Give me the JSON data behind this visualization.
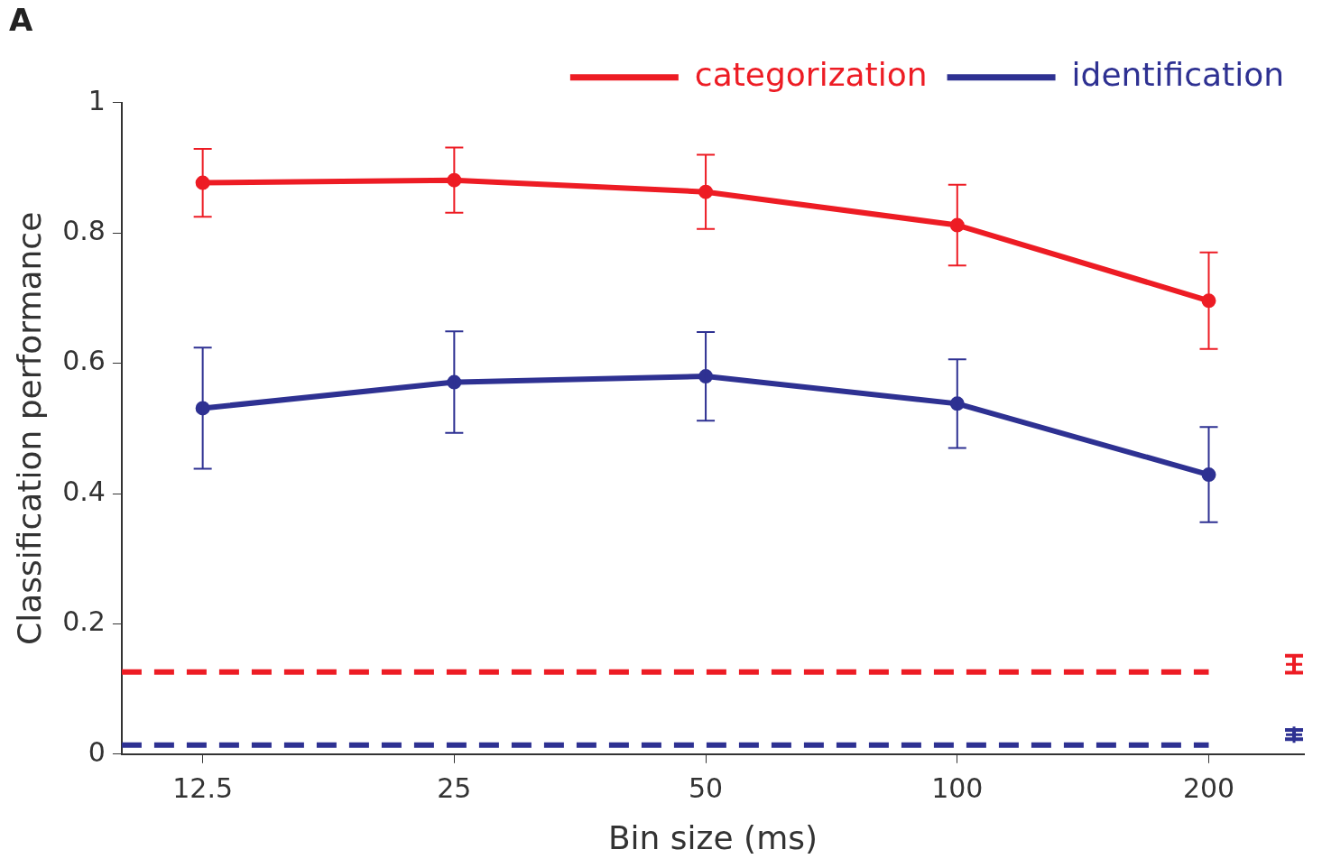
{
  "chart_data": {
    "type": "line",
    "title": "A",
    "xlabel": "Bin size (ms)",
    "ylabel": "Classification performance",
    "log": "x",
    "xlim": [
      10,
      260
    ],
    "xticks": [
      12.5,
      25,
      50,
      100,
      200
    ],
    "ylim": [
      0,
      1
    ],
    "yticks": [
      0,
      0.2,
      0.4,
      0.6,
      0.8,
      1
    ],
    "grid": false,
    "legend": "top right",
    "marker": "circle",
    "line_style": "solid",
    "x": [
      12.5,
      25,
      50,
      100,
      200
    ],
    "series": [
      {
        "name": "categorization",
        "color": "#ed1c24",
        "values": [
          0.877,
          0.881,
          0.863,
          0.812,
          0.696
        ],
        "errors": [
          0.052,
          0.05,
          0.057,
          0.062,
          0.074
        ]
      },
      {
        "name": "identification",
        "color": "#2e3192",
        "values": [
          0.531,
          0.571,
          0.58,
          0.538,
          0.429
        ],
        "errors": [
          0.093,
          0.078,
          0.068,
          0.068,
          0.073
        ]
      },
      {
        "color": "#ed1c24",
        "x": [
          10,
          200
        ],
        "values": [
          0.126,
          0.126
        ],
        "line_style": "dashed",
        "marker": "none"
      },
      {
        "color": "#2e3192",
        "x": [
          10,
          200
        ],
        "values": [
          0.014,
          0.014
        ],
        "line_style": "dashed",
        "marker": "none"
      },
      {
        "type": "scatter",
        "color": "#ed1c24",
        "x": [
          253
        ],
        "values": [
          0.138
        ],
        "errors": [
          0.013
        ],
        "marker": "cross"
      },
      {
        "type": "scatter",
        "color": "#2e3192",
        "x": [
          253
        ],
        "values": [
          0.03
        ],
        "errors": [
          0.007
        ],
        "marker": "cross"
      }
    ]
  }
}
